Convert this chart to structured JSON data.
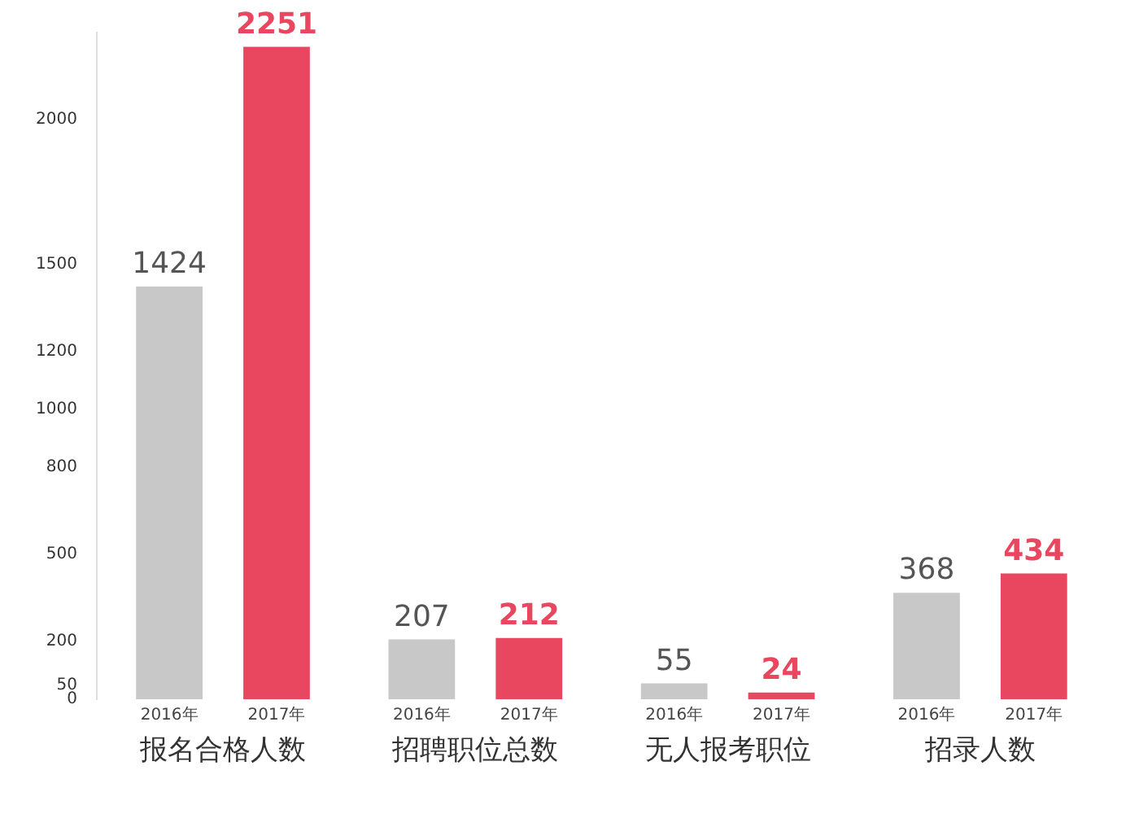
{
  "chart_data": {
    "type": "bar",
    "categories": [
      "报名合格人数",
      "招聘职位总数",
      "无人报考职位",
      "招录人数"
    ],
    "series": [
      {
        "name": "2016年",
        "color": "#c8c8c8",
        "values": [
          1424,
          207,
          55,
          368
        ]
      },
      {
        "name": "2017年",
        "color": "#e8475f",
        "values": [
          2251,
          212,
          24,
          434
        ]
      }
    ],
    "ylim": [
      0,
      2300
    ],
    "yticks": [
      0,
      50,
      200,
      500,
      800,
      1000,
      1200,
      1500,
      2000
    ],
    "grid": false,
    "legend": false,
    "data_labels": true
  }
}
